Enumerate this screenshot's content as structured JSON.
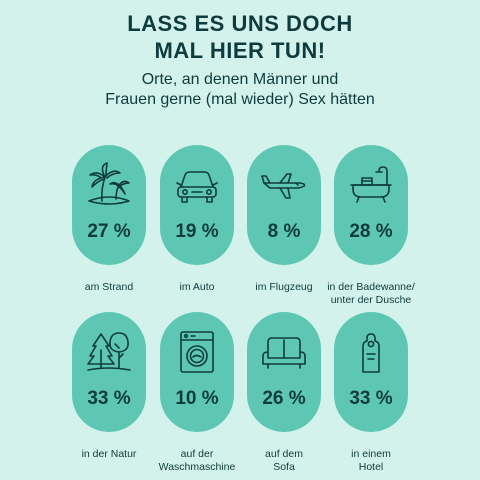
{
  "title_lines": [
    "LASS ES UNS DOCH",
    "MAL HIER TUN!"
  ],
  "subtitle_lines": [
    "Orte, an denen Männer und",
    "Frauen gerne (mal wieder) Sex hätten"
  ],
  "colors": {
    "background": "#d4f2ec",
    "pill": "#5dc7b3",
    "text": "#0e3b3d"
  },
  "chart_data": {
    "type": "pictogram",
    "unit": "%",
    "items": [
      {
        "icon": "palm-island-icon",
        "value": 27,
        "value_label": "27 %",
        "label_lines": [
          "am Strand"
        ]
      },
      {
        "icon": "car-icon",
        "value": 19,
        "value_label": "19 %",
        "label_lines": [
          "im Auto"
        ]
      },
      {
        "icon": "airplane-icon",
        "value": 8,
        "value_label": "8 %",
        "label_lines": [
          "im Flugzeug"
        ]
      },
      {
        "icon": "bathtub-icon",
        "value": 28,
        "value_label": "28 %",
        "label_lines": [
          "in der Badewanne/",
          "unter der Dusche"
        ]
      },
      {
        "icon": "trees-icon",
        "value": 33,
        "value_label": "33 %",
        "label_lines": [
          "in der Natur"
        ]
      },
      {
        "icon": "washing-machine-icon",
        "value": 10,
        "value_label": "10 %",
        "label_lines": [
          "auf der",
          "Waschmaschine"
        ]
      },
      {
        "icon": "sofa-icon",
        "value": 26,
        "value_label": "26 %",
        "label_lines": [
          "auf dem",
          "Sofa"
        ]
      },
      {
        "icon": "door-hanger-icon",
        "value": 33,
        "value_label": "33 %",
        "label_lines": [
          "in einem",
          "Hotel"
        ]
      }
    ]
  }
}
